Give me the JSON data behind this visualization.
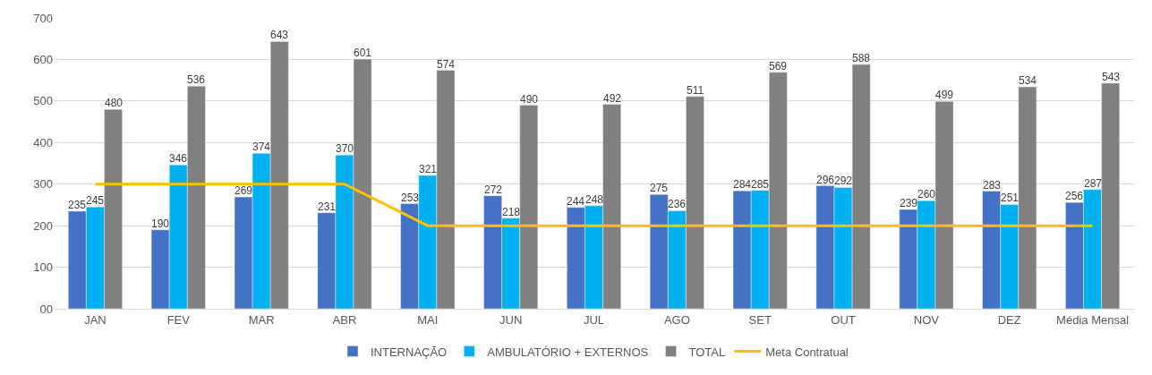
{
  "chart_data": {
    "type": "bar",
    "categories": [
      "JAN",
      "FEV",
      "MAR",
      "ABR",
      "MAI",
      "JUN",
      "JUL",
      "AGO",
      "SET",
      "OUT",
      "NOV",
      "DEZ",
      "Média Mensal"
    ],
    "series": [
      {
        "name": "INTERNAÇÃO",
        "color": "#4472c4",
        "values": [
          235,
          190,
          269,
          231,
          253,
          272,
          244,
          275,
          284,
          296,
          239,
          283,
          256
        ],
        "value_labels": [
          "235",
          "190",
          "269",
          "231",
          "253",
          "272",
          "244",
          "275",
          "284",
          "296",
          "239",
          "283",
          "256"
        ]
      },
      {
        "name": "AMBULATÓRIO + EXTERNOS",
        "color": "#00b0f0",
        "values": [
          245,
          346,
          374,
          370,
          321,
          218,
          248,
          236,
          285,
          292,
          260,
          251,
          287
        ],
        "value_labels": [
          "245",
          "346",
          "374",
          "370",
          "321",
          "218",
          "248",
          "236",
          "285",
          "292",
          "260",
          "251",
          "287"
        ]
      },
      {
        "name": "TOTAL",
        "color": "#808080",
        "values": [
          480,
          536,
          643,
          601,
          574,
          490,
          492,
          511,
          569,
          588,
          499,
          534,
          543
        ],
        "value_labels": [
          "480",
          "536",
          "643",
          "601",
          "574",
          "490",
          "492",
          "511",
          "569",
          "588",
          "499",
          "534",
          "543"
        ]
      },
      {
        "name": "Meta Contratual",
        "type": "line",
        "color": "#ffc000",
        "values": [
          300,
          300,
          300,
          300,
          200,
          200,
          200,
          200,
          200,
          200,
          200,
          200,
          200
        ]
      }
    ],
    "ylim": [
      0,
      700
    ],
    "yticks": [
      {
        "value": 0,
        "label": "00"
      },
      100,
      200,
      300,
      400,
      500,
      600,
      700
    ],
    "grid": "y",
    "legend": "bottom"
  }
}
